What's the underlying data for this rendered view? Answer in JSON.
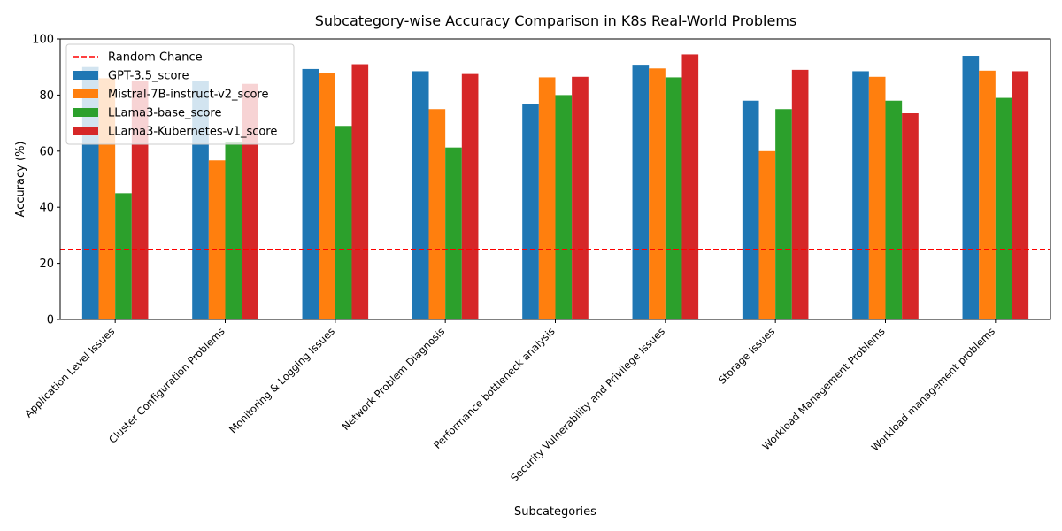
{
  "chart_data": {
    "type": "bar",
    "title": "Subcategory-wise Accuracy Comparison in K8s Real-World Problems",
    "xlabel": "Subcategories",
    "ylabel": "Accuracy (%)",
    "ylim": [
      0,
      100
    ],
    "yticks": [
      0,
      20,
      40,
      60,
      80,
      100
    ],
    "grid": false,
    "legend_position": "top-left",
    "categories": [
      "Application Level Issues",
      "Cluster Configuration Problems",
      "Monitoring & Logging Issues",
      "Network Problem Diagnosis",
      "Performance bottleneck analysis",
      "Security Vulnerability and Privilege Issues",
      "Storage Issues",
      "Workload Management Problems",
      "Workload management problems"
    ],
    "series": [
      {
        "name": "GPT-3.5_score",
        "color": "#1f77b4",
        "values": [
          90.0,
          85.0,
          89.3,
          88.5,
          76.7,
          90.5,
          78.0,
          88.5,
          94.0
        ]
      },
      {
        "name": "Mistral-7B-instruct-v2_score",
        "color": "#ff7f0e",
        "values": [
          86.0,
          56.7,
          87.8,
          75.0,
          86.3,
          89.5,
          60.0,
          86.5,
          88.7
        ]
      },
      {
        "name": "LLama3-base_score",
        "color": "#2ca02c",
        "values": [
          45.0,
          63.3,
          69.0,
          61.3,
          80.0,
          86.3,
          75.0,
          78.0,
          79.0
        ]
      },
      {
        "name": "LLama3-Kubernetes-v1_score",
        "color": "#d62728",
        "values": [
          85.0,
          84.0,
          91.0,
          87.5,
          86.5,
          94.5,
          89.0,
          73.5,
          88.5
        ]
      }
    ],
    "reference_line": {
      "name": "Random Chance",
      "value": 25,
      "color": "#ff0000",
      "style": "dashed"
    }
  }
}
